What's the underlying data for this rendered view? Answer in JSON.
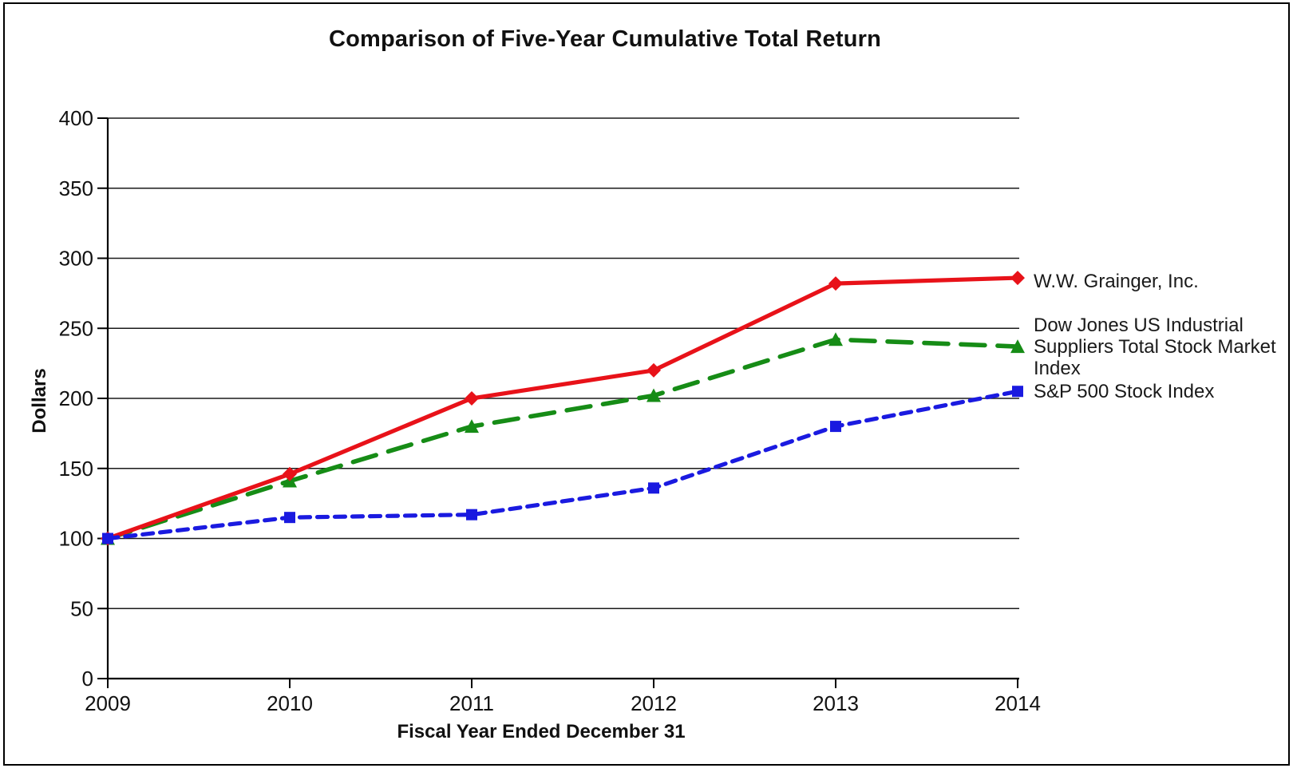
{
  "page": {
    "background": "#ffffff",
    "frame_border_color": "#000000"
  },
  "chart_data": {
    "type": "line",
    "title": "Comparison of Five-Year Cumulative Total Return",
    "xlabel": "Fiscal Year Ended December 31",
    "ylabel": "Dollars",
    "categories": [
      "2009",
      "2010",
      "2011",
      "2012",
      "2013",
      "2014"
    ],
    "y_ticks": [
      0,
      50,
      100,
      150,
      200,
      250,
      300,
      350,
      400
    ],
    "ylim": [
      0,
      400
    ],
    "grid": "horizontal-only",
    "legend_position": "right-of-line-ends",
    "axis_color": "#000000",
    "gridline_color": "#1a1a1a",
    "tick_label_color": "#111111",
    "series": [
      {
        "id": "grainger",
        "name": "W.W. Grainger, Inc.",
        "color": "#e81219",
        "line_style": "solid",
        "marker": "diamond",
        "values": [
          100,
          146,
          200,
          220,
          282,
          286
        ]
      },
      {
        "id": "dow-jones-industrial-suppliers",
        "name": "Dow Jones US Industrial Suppliers Total Stock Market Index",
        "color": "#168c16",
        "line_style": "long-dash",
        "marker": "triangle",
        "values": [
          100,
          141,
          180,
          202,
          242,
          237
        ]
      },
      {
        "id": "sp500",
        "name": "S&P 500 Stock Index",
        "color": "#1a1ae0",
        "line_style": "short-dash",
        "marker": "square",
        "values": [
          100,
          115,
          117,
          136,
          180,
          205
        ]
      }
    ]
  }
}
